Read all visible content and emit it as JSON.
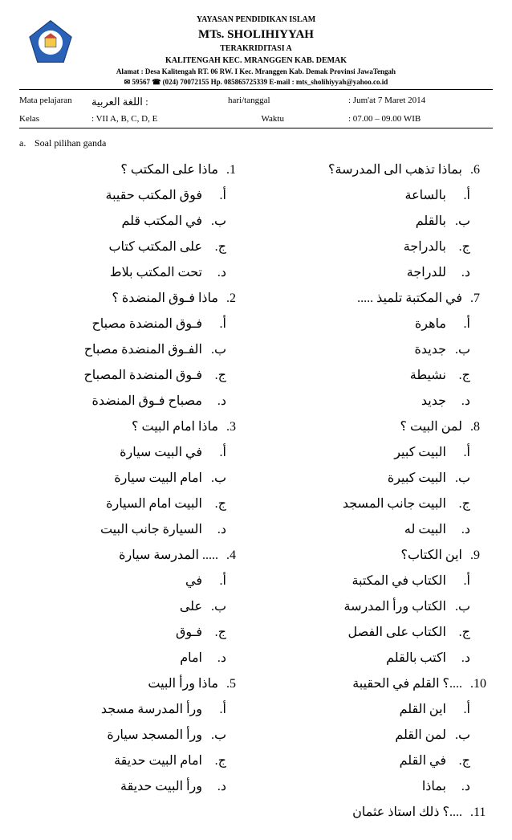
{
  "header": {
    "line1": "YAYASAN PENDIDIKAN ISLAM",
    "line2": "MTs. SHOLIHIYYAH",
    "line3": "TERAKRIDITASI  A",
    "line4": "KALITENGAH KEC. MRANGGEN KAB. DEMAK",
    "line5": "Alamat : Desa Kalitengah RT. 06 RW. I Kec. Mranggen Kab. Demak Provinsi JawaTengah",
    "line6": "✉ 59567 ☎ (024) 70072155  Hp. 085865725339 E-mail : mts_sholihiyyah@yahoo.co.id"
  },
  "meta": {
    "row1": {
      "label1": "Mata pelajaran",
      "val1": ": اللغة العربية",
      "label2": "hari/tanggal",
      "val2": ": Jum'at 7 Maret 2014"
    },
    "row2": {
      "label1": "Kelas",
      "val1": ": VII A, B, C, D, E",
      "label2": "Waktu",
      "val2": ": 07.00 – 09.00 WIB"
    }
  },
  "sectionLabel": {
    "num": "a.",
    "text": "Soal pilihan ganda"
  },
  "colLeft": [
    {
      "n": ".1",
      "q": "ماذا على المكتب ؟",
      "opts": [
        {
          "l": "أ.",
          "t": "فوق المكتب حقيبة"
        },
        {
          "l": "ب.",
          "t": "في المكتب قلم"
        },
        {
          "l": "ج.",
          "t": "على المكتب كتاب"
        },
        {
          "l": "د.",
          "t": "تحت المكتب بلاط"
        }
      ]
    },
    {
      "n": ".2",
      "q": "ماذا فـوق المنضدة ؟",
      "opts": [
        {
          "l": "أ.",
          "t": "فـوق المنضدة مصباح"
        },
        {
          "l": "ب.",
          "t": "الفـوق المنضدة مصباح"
        },
        {
          "l": "ج.",
          "t": "فـوق المنضدة المصباح"
        },
        {
          "l": "د.",
          "t": "مصباح فـوق المنضدة"
        }
      ]
    },
    {
      "n": ".3",
      "q": "ماذا امام البيت ؟",
      "opts": [
        {
          "l": "أ.",
          "t": "في البيت سيارة"
        },
        {
          "l": "ب.",
          "t": "امام البيت سيارة"
        },
        {
          "l": "ج.",
          "t": "البيت امام السيارة"
        },
        {
          "l": "د.",
          "t": "السيارة جانب البيت"
        }
      ]
    },
    {
      "n": ".4",
      "q": "..... المدرسة سيارة",
      "opts": [
        {
          "l": "أ.",
          "t": "في"
        },
        {
          "l": "ب.",
          "t": "على"
        },
        {
          "l": "ج.",
          "t": "فـوق"
        },
        {
          "l": "د.",
          "t": "امام"
        }
      ]
    },
    {
      "n": ".5",
      "q": "ماذا ورأ البيت",
      "opts": [
        {
          "l": "أ.",
          "t": "ورأ المدرسة مسجد"
        },
        {
          "l": "ب.",
          "t": "ورأ المسجد سيارة"
        },
        {
          "l": "ج.",
          "t": "امام البيت حديقة"
        },
        {
          "l": "د.",
          "t": "ورأ البيت حديقة"
        }
      ]
    }
  ],
  "colRight": [
    {
      "n": ".6",
      "q": "بماذا تذهب الى المدرسة؟",
      "opts": [
        {
          "l": "أ.",
          "t": "بالساعة"
        },
        {
          "l": "ب.",
          "t": "بالقلم"
        },
        {
          "l": "ج.",
          "t": "بالدراجة"
        },
        {
          "l": "د.",
          "t": "للدراجة"
        }
      ]
    },
    {
      "n": ".7",
      "q": "في المكتبة تلميذ .....",
      "opts": [
        {
          "l": "أ.",
          "t": "ماهرة"
        },
        {
          "l": "ب.",
          "t": "جديدة"
        },
        {
          "l": "ج.",
          "t": "نشيطة"
        },
        {
          "l": "د.",
          "t": "جديد"
        }
      ]
    },
    {
      "n": ".8",
      "q": "لمن البيت ؟",
      "opts": [
        {
          "l": "أ.",
          "t": "البيت كبير"
        },
        {
          "l": "ب.",
          "t": "البيت كبيرة"
        },
        {
          "l": "ج.",
          "t": "البيت جانب المسجد"
        },
        {
          "l": "د.",
          "t": "البيت له"
        }
      ]
    },
    {
      "n": ".9",
      "q": "اين الكتاب؟",
      "opts": [
        {
          "l": "أ.",
          "t": "الكتاب في المكتبة"
        },
        {
          "l": "ب.",
          "t": "الكتاب ورأ المدرسة"
        },
        {
          "l": "ج.",
          "t": "الكتاب على الفصل"
        },
        {
          "l": "د.",
          "t": "اكتب بالقلم"
        }
      ]
    },
    {
      "n": ".10",
      "q": "....؟ القلم في الحقيبة",
      "opts": [
        {
          "l": "أ.",
          "t": "اين القلم"
        },
        {
          "l": "ب.",
          "t": "لمن القلم"
        },
        {
          "l": "ج.",
          "t": "في القلم"
        },
        {
          "l": "د.",
          "t": "بماذا"
        }
      ]
    },
    {
      "n": ".11",
      "q": "....؟ ذلك استاذ عثمان",
      "opts": []
    }
  ]
}
